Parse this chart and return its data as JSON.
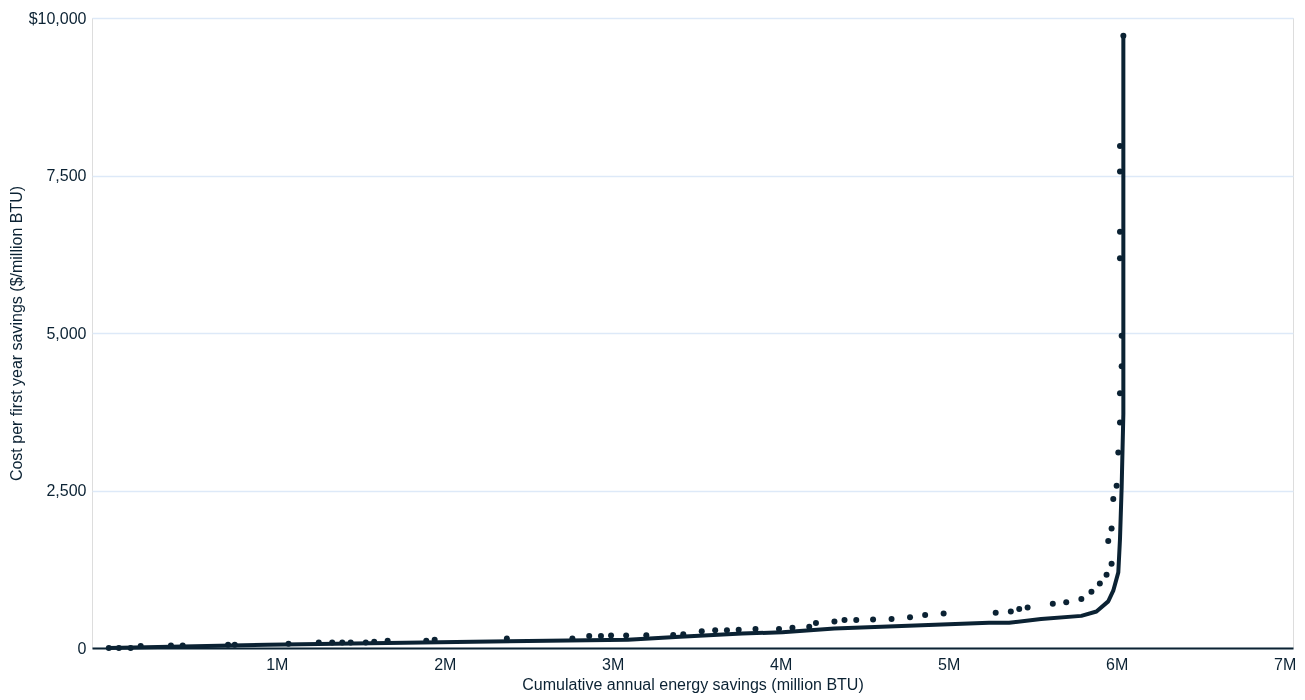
{
  "chart_data": {
    "type": "scatter",
    "xlabel": "Cumulative annual energy savings (million BTU)",
    "ylabel": "Cost per first year savings ($/million BTU)",
    "xlim": [
      -100000,
      7050000
    ],
    "xticks": [
      {
        "value": 1000000,
        "label": "1M"
      },
      {
        "value": 2000000,
        "label": "2M"
      },
      {
        "value": 3000000,
        "label": "3M"
      },
      {
        "value": 4000000,
        "label": "4M"
      },
      {
        "value": 5000000,
        "label": "5M"
      },
      {
        "value": 6000000,
        "label": "6M"
      },
      {
        "value": 7000000,
        "label": "7M"
      }
    ],
    "ylim": [
      0,
      10000
    ],
    "yticks": [
      0,
      {
        "value": 2500,
        "label": "2,500"
      },
      {
        "value": 5000,
        "label": "5,000"
      },
      {
        "value": 7500,
        "label": "7,500"
      },
      {
        "value": 10000,
        "label": "$10,000"
      }
    ],
    "grid": "y",
    "legend": false,
    "series": [
      {
        "color": "#0b2233",
        "marker": "circle",
        "x": [
          0,
          60000,
          130000,
          190000,
          370000,
          440000,
          710000,
          750000,
          1070000,
          1250000,
          1330000,
          1390000,
          1440000,
          1530000,
          1580000,
          1660000,
          1890000,
          1940000,
          2370000,
          2760000,
          2860000,
          2930000,
          2990000,
          3080000,
          3200000,
          3360000,
          3420000,
          3530000,
          3610000,
          3680000,
          3750000,
          3850000,
          3990000,
          4070000,
          4170000,
          4210000,
          4320000,
          4380000,
          4450000,
          4550000,
          4660000,
          4770000,
          4860000,
          4970000,
          5280000,
          5370000,
          5420000,
          5470000,
          5620000,
          5700000,
          5790000,
          5850000,
          5900000,
          5940000,
          5970000,
          5950000,
          5970000,
          5980000,
          6000000,
          6010000,
          6020000,
          6020000,
          6030000,
          6030000,
          6020000,
          6020000,
          6020000,
          6020000,
          6040000
        ],
        "values": [
          0,
          0,
          0,
          33,
          40,
          40,
          50,
          50,
          66,
          89,
          89,
          89,
          89,
          89,
          99,
          116,
          116,
          132,
          149,
          149,
          190,
          190,
          198,
          198,
          203,
          206,
          219,
          267,
          280,
          280,
          289,
          302,
          302,
          323,
          337,
          396,
          419,
          446,
          446,
          454,
          462,
          488,
          523,
          549,
          561,
          578,
          619,
          644,
          701,
          726,
          776,
          891,
          1023,
          1162,
          1337,
          1700,
          1898,
          2366,
          2574,
          3102,
          3581,
          4043,
          4472,
          4958,
          6188,
          6608,
          7565,
          7970,
          9719
        ]
      },
      {
        "type": "line",
        "color": "#0b2233",
        "marker": "none",
        "line_style": "solid",
        "x": [
          0,
          945000,
          2170000,
          3090000,
          3400000,
          3770000,
          4010000,
          4320000,
          5240000,
          5360000,
          5550000,
          5790000,
          5880000,
          5950000,
          5980000,
          6010000,
          6020000,
          6030000,
          6040000,
          6040000,
          6040000,
          6040000
        ],
        "values": [
          0,
          50,
          100,
          130,
          180,
          230,
          250,
          310,
          400,
          400,
          460,
          510,
          580,
          740,
          910,
          1200,
          1730,
          2560,
          3710,
          5360,
          7010,
          9720
        ]
      }
    ]
  }
}
